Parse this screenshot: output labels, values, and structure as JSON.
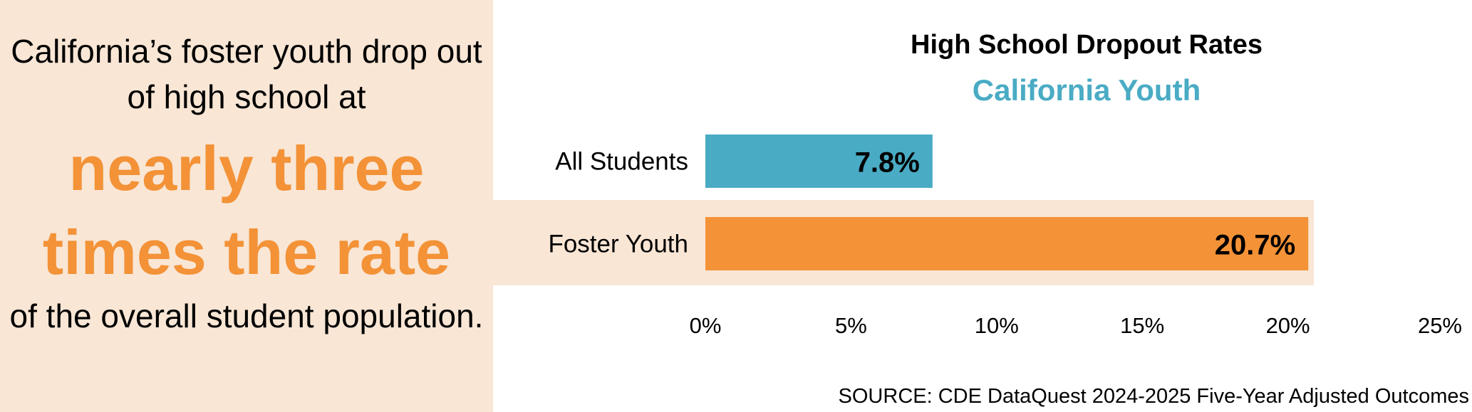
{
  "callout": {
    "intro": "California’s foster youth drop out of high school at",
    "emphasis": "nearly three times the rate",
    "outro": "of the overall student population."
  },
  "colors": {
    "all_students": "#4aabc4",
    "foster_youth": "#f39237",
    "highlight": "#f9e6d5"
  },
  "chart_data": {
    "type": "bar",
    "orientation": "horizontal",
    "title": "High School Dropout Rates",
    "subtitle": "California Youth",
    "categories": [
      "All Students",
      "Foster Youth"
    ],
    "values": [
      7.8,
      20.7
    ],
    "value_labels": [
      "7.8%",
      "20.7%"
    ],
    "xlim": [
      0,
      25
    ],
    "x_ticks": [
      0,
      5,
      10,
      15,
      20,
      25
    ],
    "x_tick_labels": [
      "0%",
      "5%",
      "10%",
      "15%",
      "20%",
      "25%"
    ],
    "grid": false,
    "highlighted_category": "Foster Youth"
  },
  "source": "SOURCE: CDE DataQuest 2024-2025 Five-Year Adjusted Outcomes"
}
